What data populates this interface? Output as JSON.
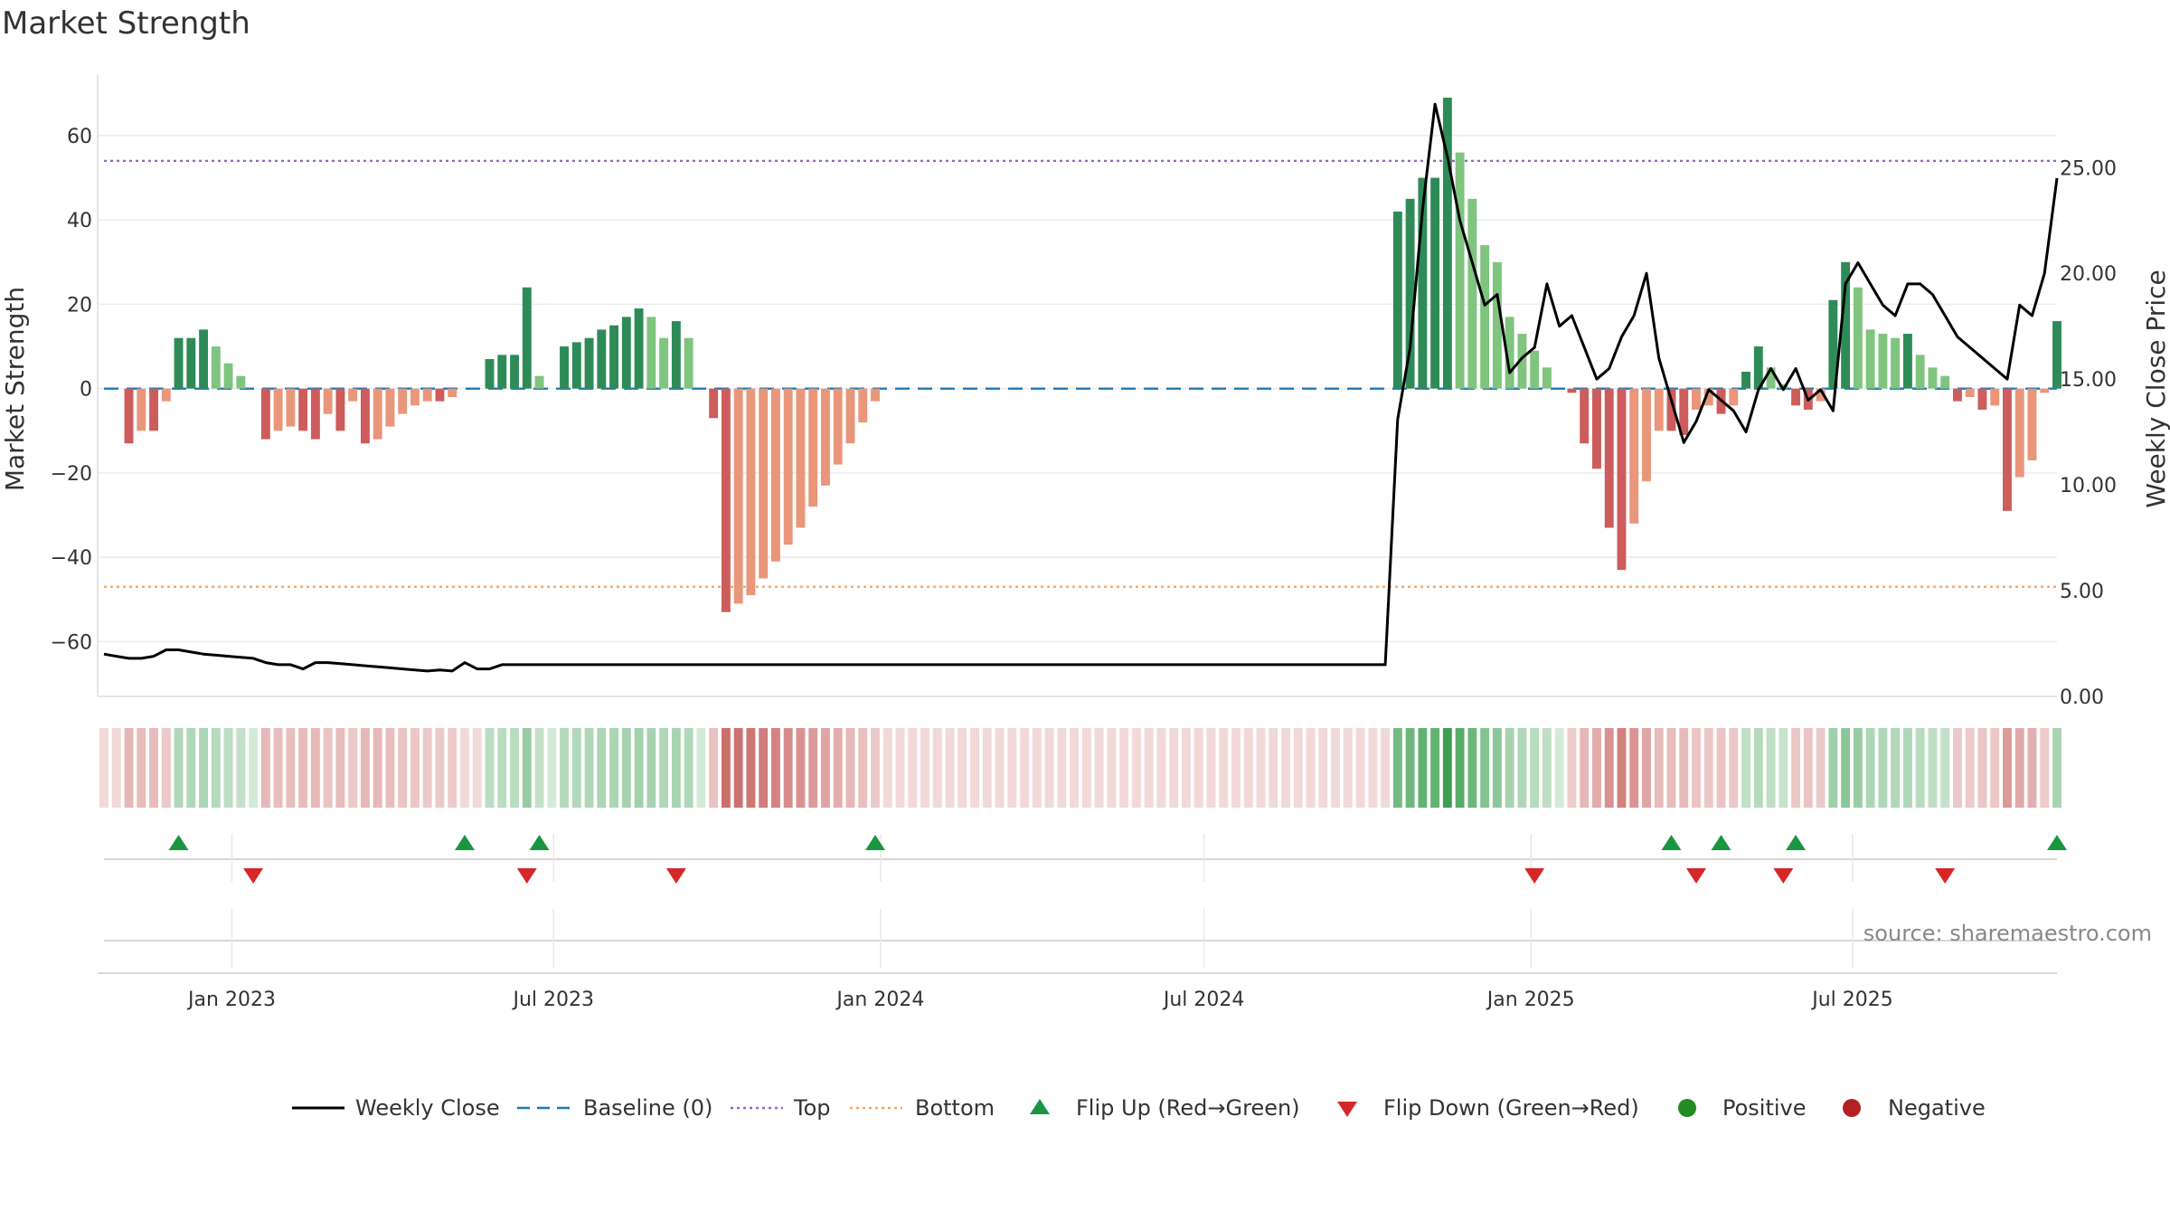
{
  "title": "Market Strength",
  "source": "source: sharemaestro.com",
  "colors": {
    "pos_strong": "#2e8b57",
    "pos_weak": "#7fc47f",
    "neg_strong": "#cd5c5c",
    "neg_weak": "#e9967a",
    "top_line": "#9467bd",
    "bottom_line": "#f4a460",
    "baseline": "#1f77b4",
    "close_line": "#000000",
    "flip_up": "#1a9641",
    "flip_down": "#d62728",
    "positive": "#228b22",
    "negative": "#b22222"
  },
  "chart_data": {
    "type": "bar",
    "title": "Market Strength",
    "ylabel_left": "Market Strength",
    "ylabel_right": "Weekly Close Price",
    "ylim_left": [
      -73,
      75
    ],
    "ylim_right": [
      0,
      29.5
    ],
    "yticks_left": [
      "60",
      "40",
      "20",
      "0",
      "−20",
      "−40",
      "−60"
    ],
    "yticks_right": [
      "25.00",
      "20.00",
      "15.00",
      "10.00",
      "5.00",
      "0.00"
    ],
    "x_ticks": [
      "Jan 2023",
      "Jul 2023",
      "Jan 2024",
      "Jul 2024",
      "Jan 2025",
      "Jul 2025"
    ],
    "top_level": 54,
    "bottom_level": -47,
    "baseline": 0,
    "start_date": "2022-10-21",
    "weeks": 158,
    "strength": [
      0,
      0,
      -13,
      -10,
      -10,
      -3,
      12,
      12,
      14,
      10,
      6,
      3,
      0,
      -12,
      -10,
      -9,
      -10,
      -12,
      -6,
      -10,
      -3,
      -13,
      -12,
      -9,
      -6,
      -4,
      -3,
      -3,
      -2,
      0,
      0,
      7,
      8,
      8,
      24,
      3,
      0,
      10,
      11,
      12,
      14,
      15,
      17,
      19,
      17,
      12,
      16,
      12,
      0,
      -7,
      -53,
      -51,
      -49,
      -45,
      -41,
      -37,
      -33,
      -28,
      -23,
      -18,
      -13,
      -8,
      -3,
      0,
      0,
      0,
      0,
      0,
      0,
      0,
      0,
      0,
      0,
      0,
      0,
      0,
      0,
      0,
      0,
      0,
      0,
      0,
      0,
      0,
      0,
      0,
      0,
      0,
      0,
      0,
      0,
      0,
      0,
      0,
      0,
      0,
      0,
      0,
      0,
      0,
      0,
      0,
      0,
      0,
      42,
      45,
      50,
      50,
      69,
      56,
      45,
      34,
      30,
      17,
      13,
      9,
      5,
      0,
      -1,
      -13,
      -19,
      -33,
      -43,
      -32,
      -22,
      -10,
      -10,
      -11,
      -5,
      -4,
      -6,
      -4,
      4,
      10,
      5,
      1,
      -4,
      -5,
      -3,
      21,
      30,
      24,
      14,
      13,
      12,
      13,
      8,
      5,
      3,
      -3,
      -2,
      -5,
      -4,
      -29,
      -21,
      -17,
      -1,
      16
    ],
    "close_price": [
      2.0,
      1.9,
      1.8,
      1.8,
      1.9,
      2.2,
      2.2,
      2.1,
      2.0,
      1.95,
      1.9,
      1.85,
      1.8,
      1.6,
      1.5,
      1.5,
      1.3,
      1.6,
      1.6,
      1.55,
      1.5,
      1.45,
      1.4,
      1.35,
      1.3,
      1.25,
      1.2,
      1.25,
      1.2,
      1.6,
      1.3,
      1.3,
      1.5,
      1.5,
      1.5,
      1.5,
      1.5,
      1.5,
      1.5,
      1.5,
      1.5,
      1.5,
      1.5,
      1.5,
      1.5,
      1.5,
      1.5,
      1.5,
      1.5,
      1.5,
      1.5,
      1.5,
      1.5,
      1.5,
      1.5,
      1.5,
      1.5,
      1.5,
      1.5,
      1.5,
      1.5,
      1.5,
      1.5,
      1.5,
      1.5,
      1.5,
      1.5,
      1.5,
      1.5,
      1.5,
      1.5,
      1.5,
      1.5,
      1.5,
      1.5,
      1.5,
      1.5,
      1.5,
      1.5,
      1.5,
      1.5,
      1.5,
      1.5,
      1.5,
      1.5,
      1.5,
      1.5,
      1.5,
      1.5,
      1.5,
      1.5,
      1.5,
      1.5,
      1.5,
      1.5,
      1.5,
      1.5,
      1.5,
      1.5,
      1.5,
      1.5,
      1.5,
      1.5,
      1.5,
      13.1,
      16.5,
      23.0,
      28.0,
      25.5,
      22.5,
      20.5,
      18.5,
      19.0,
      15.3,
      16.0,
      16.5,
      19.5,
      17.5,
      18.0,
      16.5,
      15.0,
      15.5,
      17.0,
      18.0,
      20.0,
      16.0,
      14.0,
      12.0,
      13.0,
      14.5,
      14.0,
      13.5,
      12.5,
      14.5,
      15.5,
      14.5,
      15.5,
      14.0,
      14.5,
      13.5,
      19.5,
      20.5,
      19.5,
      18.5,
      18.0,
      19.5,
      19.5,
      19.0,
      18.0,
      17.0,
      16.5,
      16.0,
      15.5,
      15.0,
      18.5,
      18.0,
      20.0,
      24.5
    ],
    "flip_up_weeks": [
      6,
      29,
      35,
      62,
      126,
      130,
      136,
      157
    ],
    "flip_down_weeks": [
      12,
      34,
      46,
      115,
      128,
      135,
      148
    ],
    "legend": [
      {
        "label": "Weekly Close",
        "kind": "line"
      },
      {
        "label": "Baseline (0)",
        "kind": "dashed"
      },
      {
        "label": "Top",
        "kind": "dotted-top"
      },
      {
        "label": "Bottom",
        "kind": "dotted-bottom"
      },
      {
        "label": "Flip Up (Red→Green)",
        "kind": "triangle-up"
      },
      {
        "label": "Flip Down (Green→Red)",
        "kind": "triangle-down"
      },
      {
        "label": "Positive",
        "kind": "circle-positive"
      },
      {
        "label": "Negative",
        "kind": "circle-negative"
      }
    ]
  }
}
